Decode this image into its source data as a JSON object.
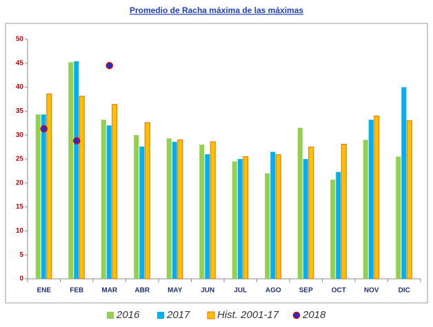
{
  "chart_data": {
    "type": "bar",
    "title": "Promedio de Racha máxima de las máximas",
    "categories": [
      "ENE",
      "FEB",
      "MAR",
      "ABR",
      "MAY",
      "JUN",
      "JUL",
      "AGO",
      "SEP",
      "OCT",
      "NOV",
      "DIC"
    ],
    "series": [
      {
        "name": "2016",
        "color": "#92d050",
        "values": [
          34.3,
          45.2,
          33.2,
          30,
          29.3,
          28,
          24.5,
          22,
          31.5,
          20.7,
          29,
          25.5
        ]
      },
      {
        "name": "2017",
        "color": "#00b0f0",
        "values": [
          34.3,
          45.4,
          32,
          27.6,
          28.6,
          26,
          25,
          26.5,
          25,
          22.3,
          33.2,
          40
        ]
      },
      {
        "name": "Hist. 2001-17",
        "color": "#ffc000",
        "edgecolor": "#e46c0a",
        "values": [
          38.6,
          38.1,
          36.4,
          32.6,
          29,
          28.6,
          25.5,
          25.9,
          27.5,
          28.1,
          34,
          33
        ]
      },
      {
        "name": "2018",
        "color": "#1c2fd0",
        "edgecolor": "#e00000",
        "marker": "dot",
        "values": [
          31.3,
          28.8,
          44.5,
          null,
          null,
          null,
          null,
          null,
          null,
          null,
          null,
          null
        ]
      }
    ],
    "ylim": [
      0,
      50
    ],
    "yticks": [
      0,
      5,
      10,
      15,
      20,
      25,
      30,
      35,
      40,
      45,
      50
    ],
    "grid": false
  }
}
